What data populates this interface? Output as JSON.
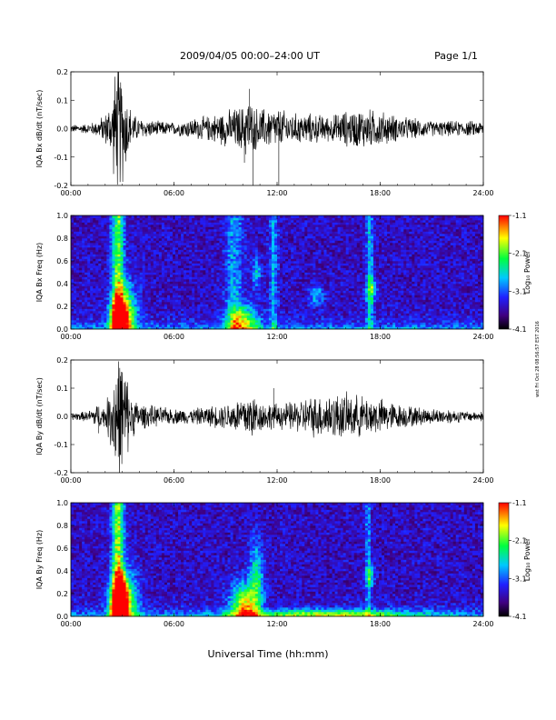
{
  "header": {
    "title": "2009/04/05  00:00–24:00 UT",
    "page": "Page 1/1"
  },
  "side_note": "wst Fri Oct 28 08:56:57 EST 2016",
  "xlabel": "Universal Time (hh:mm)",
  "chart_data": [
    {
      "type": "line",
      "ylabel": "IQA Bx dB/dt (nT/sec)",
      "xlim": [
        0,
        24
      ],
      "ylim": [
        -0.2,
        0.2
      ],
      "x_ticks": [
        "00:00",
        "06:00",
        "12:00",
        "18:00",
        "24:00"
      ],
      "y_ticks": [
        "-0.2",
        "-0.1",
        "0.0",
        "0.1",
        "0.2"
      ],
      "envelope": {
        "hours": [
          0,
          1,
          1.5,
          2,
          2.4,
          2.6,
          2.8,
          3,
          3.3,
          3.6,
          4,
          5,
          6,
          7,
          8,
          8.5,
          9,
          9.5,
          10,
          10.3,
          10.6,
          11,
          12,
          13,
          14,
          15,
          16,
          17,
          18,
          19,
          20,
          21,
          22,
          23,
          24
        ],
        "amplitude": [
          0.015,
          0.02,
          0.03,
          0.06,
          0.12,
          0.25,
          0.25,
          0.22,
          0.12,
          0.06,
          0.04,
          0.03,
          0.025,
          0.04,
          0.05,
          0.06,
          0.07,
          0.08,
          0.09,
          0.13,
          0.09,
          0.08,
          0.08,
          0.06,
          0.06,
          0.05,
          0.07,
          0.08,
          0.07,
          0.05,
          0.04,
          0.03,
          0.03,
          0.03,
          0.03
        ]
      },
      "spikes": [
        {
          "hour": 10.4,
          "value": 0.14
        },
        {
          "hour": 10.1,
          "value": -0.12
        },
        {
          "hour": 10.6,
          "value": -0.2
        },
        {
          "hour": 12.1,
          "value": -0.2
        }
      ]
    },
    {
      "type": "heatmap",
      "ylabel": "IQA Bx Freq (Hz)",
      "xlim": [
        0,
        24
      ],
      "ylim": [
        0,
        1.0
      ],
      "x_ticks": [
        "00:00",
        "06:00",
        "12:00",
        "18:00",
        "24:00"
      ],
      "y_ticks": [
        "0.0",
        "0.2",
        "0.4",
        "0.6",
        "0.8",
        "1.0"
      ],
      "colorbar": {
        "label": "Log₁₀ Power",
        "range": [
          -4.1,
          -1.1
        ],
        "ticks": [
          "-1.1",
          "-2.1",
          "-3.1",
          "-4.1"
        ]
      },
      "vertical_features": [
        {
          "hour": 2.75,
          "width": 0.35,
          "strength": 0.55,
          "top": 1.0
        },
        {
          "hour": 9.5,
          "width": 0.5,
          "strength": 0.25,
          "top": 1.0
        },
        {
          "hour": 11.8,
          "width": 0.25,
          "strength": 0.25,
          "top": 1.0
        },
        {
          "hour": 17.4,
          "width": 0.2,
          "strength": 0.3,
          "top": 1.0
        }
      ],
      "blobs": [
        {
          "hour": 2.8,
          "freq": 0.05,
          "width": 0.5,
          "height": 0.2,
          "strength": 0.85
        },
        {
          "hour": 3.2,
          "freq": 0.15,
          "width": 0.7,
          "height": 0.25,
          "strength": 0.45
        },
        {
          "hour": 10.0,
          "freq": 0.06,
          "width": 0.9,
          "height": 0.15,
          "strength": 0.5
        },
        {
          "hour": 10.8,
          "freq": 0.5,
          "width": 0.25,
          "height": 0.12,
          "strength": 0.3
        },
        {
          "hour": 14.3,
          "freq": 0.3,
          "width": 0.4,
          "height": 0.1,
          "strength": 0.25
        },
        {
          "hour": 17.5,
          "freq": 0.35,
          "width": 0.3,
          "height": 0.1,
          "strength": 0.3
        }
      ]
    },
    {
      "type": "line",
      "ylabel": "IQA By dB/dt (nT/sec)",
      "xlim": [
        0,
        24
      ],
      "ylim": [
        -0.2,
        0.2
      ],
      "x_ticks": [
        "00:00",
        "06:00",
        "12:00",
        "18:00",
        "24:00"
      ],
      "y_ticks": [
        "-0.2",
        "-0.1",
        "0.0",
        "0.1",
        "0.2"
      ],
      "envelope": {
        "hours": [
          0,
          1,
          1.5,
          2,
          2.4,
          2.6,
          2.8,
          3,
          3.3,
          3.6,
          4,
          5,
          6,
          7,
          8,
          9,
          10,
          10.5,
          11,
          12,
          13,
          14,
          15,
          16,
          17,
          18,
          19,
          20,
          21,
          22,
          23,
          24
        ],
        "amplitude": [
          0.015,
          0.02,
          0.05,
          0.04,
          0.15,
          0.25,
          0.25,
          0.25,
          0.15,
          0.08,
          0.05,
          0.04,
          0.03,
          0.03,
          0.04,
          0.05,
          0.08,
          0.1,
          0.06,
          0.05,
          0.06,
          0.08,
          0.09,
          0.09,
          0.08,
          0.07,
          0.05,
          0.04,
          0.03,
          0.03,
          0.02,
          0.02
        ]
      },
      "spikes": [
        {
          "hour": 1.6,
          "value": -0.06
        },
        {
          "hour": 11.8,
          "value": 0.1
        }
      ]
    },
    {
      "type": "heatmap",
      "ylabel": "IQA By Freq (Hz)",
      "xlim": [
        0,
        24
      ],
      "ylim": [
        0,
        1.0
      ],
      "x_ticks": [
        "00:00",
        "06:00",
        "12:00",
        "18:00",
        "24:00"
      ],
      "y_ticks": [
        "0.0",
        "0.2",
        "0.4",
        "0.6",
        "0.8",
        "1.0"
      ],
      "colorbar": {
        "label": "Log₁₀ Power",
        "range": [
          -4.1,
          -1.1
        ],
        "ticks": [
          "-1.1",
          "-2.1",
          "-3.1",
          "-4.1"
        ]
      },
      "vertical_features": [
        {
          "hour": 2.75,
          "width": 0.35,
          "strength": 0.6,
          "top": 1.0
        },
        {
          "hour": 17.3,
          "width": 0.15,
          "strength": 0.25,
          "top": 1.0
        }
      ],
      "blobs": [
        {
          "hour": 2.8,
          "freq": 0.05,
          "width": 0.5,
          "height": 0.25,
          "strength": 0.9
        },
        {
          "hour": 3.2,
          "freq": 0.15,
          "width": 0.7,
          "height": 0.25,
          "strength": 0.45
        },
        {
          "hour": 10.1,
          "freq": 0.08,
          "width": 0.8,
          "height": 0.2,
          "strength": 0.6
        },
        {
          "hour": 10.8,
          "freq": 0.35,
          "width": 0.4,
          "height": 0.3,
          "strength": 0.35
        },
        {
          "hour": 17.4,
          "freq": 0.35,
          "width": 0.25,
          "height": 0.1,
          "strength": 0.3
        },
        {
          "hour": 15.0,
          "freq": 0.02,
          "width": 5.0,
          "height": 0.04,
          "strength": 0.4
        }
      ]
    }
  ]
}
